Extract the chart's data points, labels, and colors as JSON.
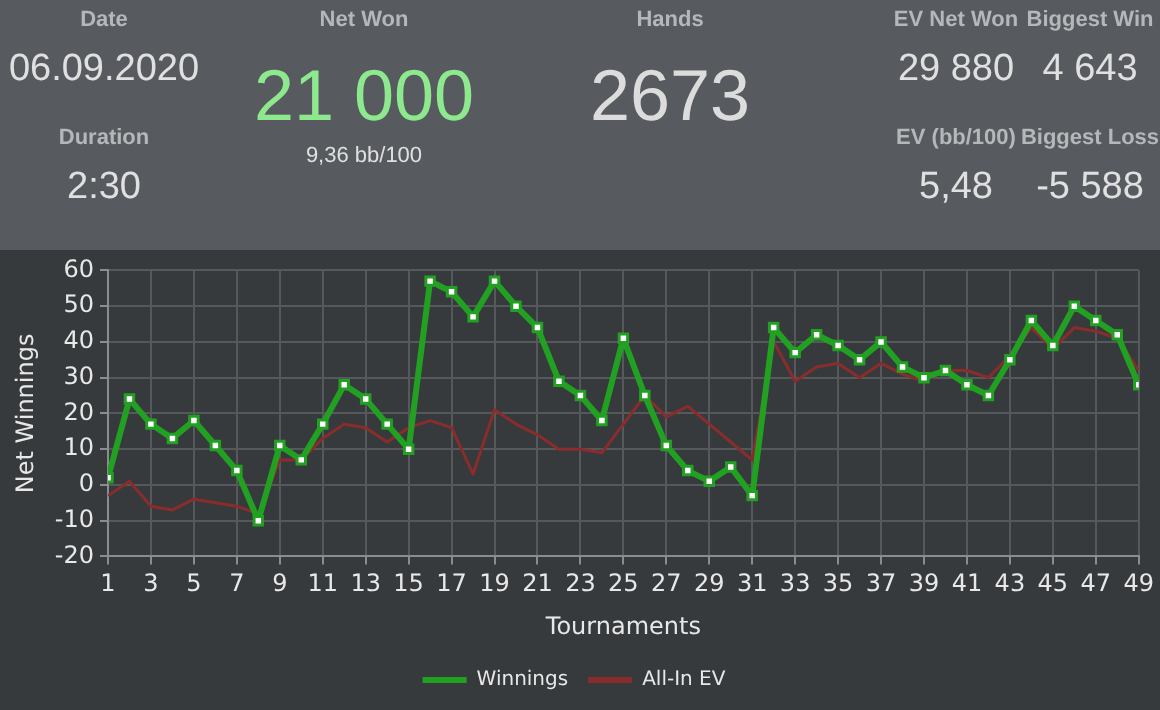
{
  "chart_data": [
    {
      "type": "other",
      "annotations": [
        "Date",
        "06.09.2020",
        "Duration",
        "2:30",
        "Net Won",
        "21 000",
        "9,36 bb/100",
        "Hands",
        "2673",
        "EV Net Won",
        "29 880",
        "Biggest Win",
        "4 643",
        "EV (bb/100)",
        "5,48",
        "Biggest Loss",
        "-5 588"
      ]
    },
    {
      "type": "line",
      "xlabel": "Tournaments",
      "ylabel": "Net Winnings",
      "x": [
        1,
        2,
        3,
        4,
        5,
        6,
        7,
        8,
        9,
        10,
        11,
        12,
        13,
        14,
        15,
        16,
        17,
        18,
        19,
        20,
        21,
        22,
        23,
        24,
        25,
        26,
        27,
        28,
        29,
        30,
        31,
        32,
        33,
        34,
        35,
        36,
        37,
        38,
        39,
        40,
        41,
        42,
        43,
        44,
        45,
        46,
        47,
        48,
        49
      ],
      "series": [
        {
          "name": "Winnings",
          "color": "#22a022",
          "marker": "square",
          "values": [
            2,
            24,
            17,
            13,
            18,
            11,
            4,
            -10,
            11,
            7,
            17,
            28,
            24,
            17,
            10,
            57,
            54,
            47,
            57,
            50,
            44,
            29,
            25,
            18,
            41,
            25,
            11,
            4,
            1,
            5,
            -3,
            44,
            37,
            42,
            39,
            35,
            40,
            33,
            30,
            32,
            28,
            25,
            35,
            46,
            39,
            50,
            46,
            42,
            28
          ]
        },
        {
          "name": "All-In EV",
          "color": "#8b2c2c",
          "marker": "none",
          "values": [
            -3,
            1,
            -6,
            -7,
            -4,
            -5,
            -6,
            -8,
            7,
            7,
            13,
            17,
            16,
            12,
            16,
            18,
            16,
            3,
            21,
            17,
            14,
            10,
            10,
            9,
            17,
            25,
            19,
            22,
            17,
            12,
            7,
            40,
            29,
            33,
            34,
            30,
            34,
            31,
            29,
            32,
            32,
            30,
            36,
            44,
            38,
            44,
            43,
            41,
            32
          ]
        }
      ],
      "xlim": [
        1,
        49
      ],
      "xticks": [
        1,
        3,
        5,
        7,
        9,
        11,
        13,
        15,
        17,
        19,
        21,
        23,
        25,
        27,
        29,
        31,
        33,
        35,
        37,
        39,
        41,
        43,
        45,
        47,
        49
      ],
      "ylim": [
        -20,
        60
      ],
      "yticks": [
        -20,
        -10,
        0,
        10,
        20,
        30,
        40,
        50,
        60
      ],
      "grid": true,
      "legend": "bottom"
    }
  ]
}
